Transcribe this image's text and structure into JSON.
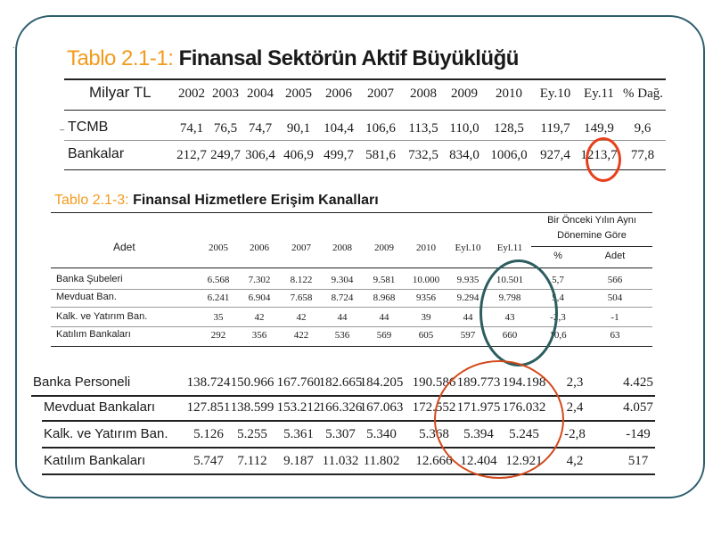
{
  "table1": {
    "title_prefix": "Tablo 2.1-1:",
    "title_text": "Finansal Sektörün Aktif Büyüklüğü",
    "unit_label": "Milyar TL",
    "columns": [
      "2002",
      "2003",
      "2004",
      "2005",
      "2006",
      "2007",
      "2008",
      "2009",
      "2010",
      "Ey.10",
      "Ey.11",
      "% Dağ."
    ],
    "rows": [
      {
        "label": "TCMB",
        "values": [
          "74,1",
          "76,5",
          "74,7",
          "90,1",
          "104,4",
          "106,6",
          "113,5",
          "110,0",
          "128,5",
          "119,7",
          "149,9",
          "9,6"
        ]
      },
      {
        "label": "Bankalar",
        "values": [
          "212,7",
          "249,7",
          "306,4",
          "406,9",
          "499,7",
          "581,6",
          "732,5",
          "834,0",
          "1006,0",
          "927,4",
          "1213,7",
          "77,8"
        ]
      }
    ]
  },
  "table2": {
    "title_prefix": "Tablo 2.1-3:",
    "title_text": "Finansal Hizmetlere Erişim Kanalları",
    "header_label": "Adet",
    "group_header_line1": "Bir Önceki Yılın Aynı",
    "group_header_line2": "Dönemine Göre",
    "sub_headers": [
      "%",
      "Adet"
    ],
    "columns": [
      "2005",
      "2006",
      "2007",
      "2008",
      "2009",
      "2010",
      "Eyl.10",
      "Eyl.11"
    ],
    "rows": [
      {
        "label": "Banka Şubeleri",
        "values": [
          "6.568",
          "7.302",
          "8.122",
          "9.304",
          "9.581",
          "10.000",
          "9.935",
          "10.501",
          "5,7",
          "566"
        ]
      },
      {
        "label": "Mevduat Ban.",
        "values": [
          "6.241",
          "6.904",
          "7.658",
          "8.724",
          "8.968",
          "9356",
          "9.294",
          "9.798",
          "5,4",
          "504"
        ]
      },
      {
        "label": "Kalk. ve Yatırım Ban.",
        "values": [
          "35",
          "42",
          "42",
          "44",
          "44",
          "39",
          "44",
          "43",
          "-2,3",
          "-1"
        ]
      },
      {
        "label": "Katılım Bankaları",
        "values": [
          "292",
          "356",
          "422",
          "536",
          "569",
          "605",
          "597",
          "660",
          "10,6",
          "63"
        ]
      }
    ]
  },
  "table3": {
    "rows": [
      {
        "label": "Banka Personeli",
        "values": [
          "138.724",
          "150.966",
          "167.760",
          "182.665",
          "184.205",
          "190.586",
          "189.773",
          "194.198",
          "2,3",
          "4.425"
        ]
      },
      {
        "label": "Mevduat Bankaları",
        "values": [
          "127.851",
          "138.599",
          "153.212",
          "166.326",
          "167.063",
          "172.552",
          "171.975",
          "176.032",
          "2,4",
          "4.057"
        ]
      },
      {
        "label": "Kalk. ve Yatırım Ban.",
        "values": [
          "5.126",
          "5.255",
          "5.361",
          "5.307",
          "5.340",
          "5.368",
          "5.394",
          "5.245",
          "-2,8",
          "-149"
        ]
      },
      {
        "label": "Katılım Bankaları",
        "values": [
          "5.747",
          "7.112",
          "9.187",
          "11.032",
          "11.802",
          "12.666",
          "12.404",
          "12.921",
          "4,2",
          "517"
        ]
      }
    ]
  },
  "colors": {
    "accent_orange": "#f39a1e",
    "highlight_red": "#e8401c",
    "highlight_teal": "#2d5d5f",
    "frame": "#2e5e6e"
  }
}
